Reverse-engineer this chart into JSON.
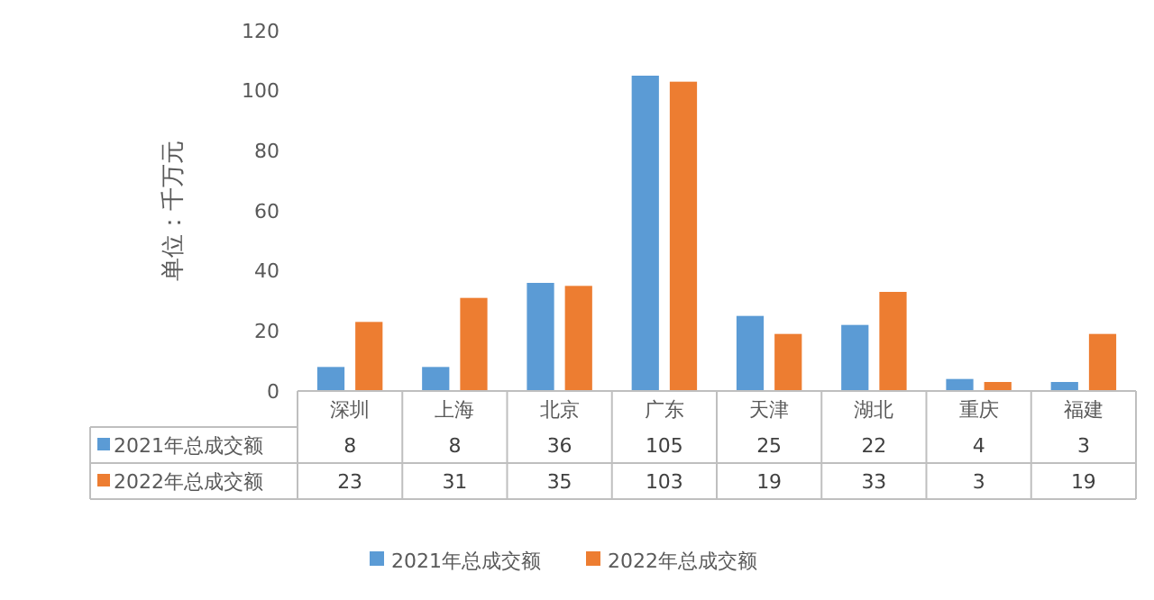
{
  "chart_data": {
    "type": "bar",
    "ylabel": "单位：千万元",
    "categories": [
      "深圳",
      "上海",
      "北京",
      "广东",
      "天津",
      "湖北",
      "重庆",
      "福建"
    ],
    "series": [
      {
        "name": "2021年总成交额",
        "color": "#5b9bd5",
        "values": [
          8,
          8,
          36,
          105,
          25,
          22,
          4,
          3
        ]
      },
      {
        "name": "2022年总成交额",
        "color": "#ed7d31",
        "values": [
          23,
          31,
          35,
          103,
          19,
          33,
          3,
          19
        ]
      }
    ],
    "ylim": [
      0,
      120
    ],
    "yticks": [
      0,
      20,
      40,
      60,
      80,
      100,
      120
    ],
    "data_labels": true,
    "legend": "bottom"
  }
}
